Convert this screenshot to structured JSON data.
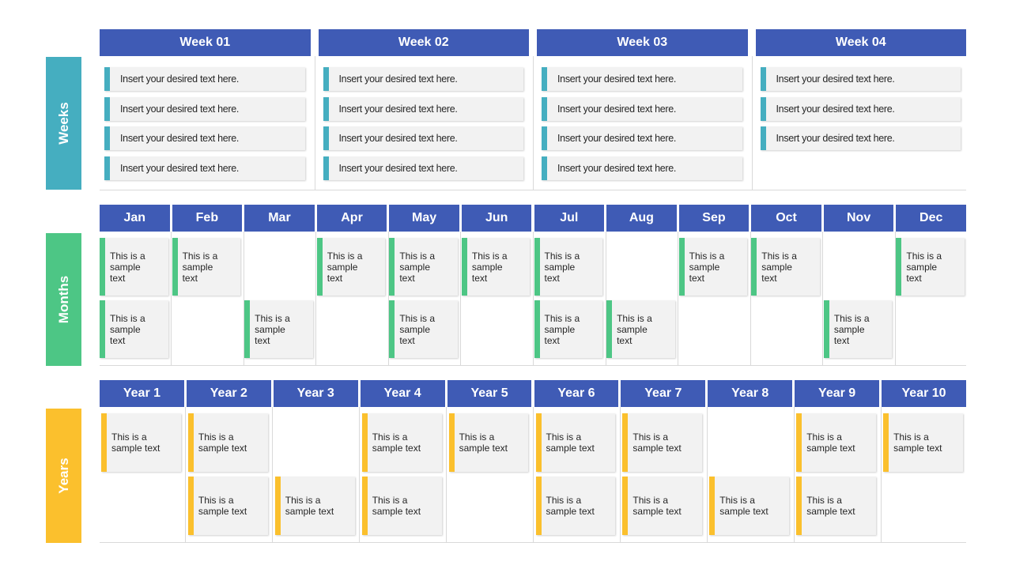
{
  "weeks": {
    "label": "Weeks",
    "columns": [
      {
        "header": "Week 01",
        "items": [
          "Insert your desired text here.",
          "Insert your desired text here.",
          "Insert your desired text here.",
          "Insert your desired text here."
        ]
      },
      {
        "header": "Week 02",
        "items": [
          "Insert your desired text here.",
          "Insert your desired text here.",
          "Insert your desired text here.",
          "Insert your desired text here."
        ]
      },
      {
        "header": "Week 03",
        "items": [
          "Insert your desired text here.",
          "Insert your desired text here.",
          "Insert your desired text here.",
          "Insert your desired text here."
        ]
      },
      {
        "header": "Week 04",
        "items": [
          "Insert your desired text here.",
          "Insert your desired text here.",
          "Insert your desired text here."
        ]
      }
    ]
  },
  "months": {
    "label": "Months",
    "columns": [
      {
        "header": "Jan",
        "items": [
          "This is a sample text",
          "This is a sample text"
        ]
      },
      {
        "header": "Feb",
        "items": [
          "This is a sample text",
          null
        ]
      },
      {
        "header": "Mar",
        "items": [
          null,
          "This is a sample text"
        ]
      },
      {
        "header": "Apr",
        "items": [
          "This is a sample text",
          null
        ]
      },
      {
        "header": "May",
        "items": [
          "This is a sample text",
          "This is a sample text"
        ]
      },
      {
        "header": "Jun",
        "items": [
          "This is a sample text",
          null
        ]
      },
      {
        "header": "Jul",
        "items": [
          "This is a sample text",
          "This is a sample text"
        ]
      },
      {
        "header": "Aug",
        "items": [
          null,
          "This is a sample text"
        ]
      },
      {
        "header": "Sep",
        "items": [
          "This is a sample text",
          null
        ]
      },
      {
        "header": "Oct",
        "items": [
          "This is a sample text",
          null
        ]
      },
      {
        "header": "Nov",
        "items": [
          null,
          "This is a sample text"
        ]
      },
      {
        "header": "Dec",
        "items": [
          "This is a sample text",
          null
        ]
      }
    ]
  },
  "years": {
    "label": "Years",
    "columns": [
      {
        "header": "Year 1",
        "items": [
          "This is a sample text",
          null
        ]
      },
      {
        "header": "Year 2",
        "items": [
          "This is a sample text",
          "This is a sample text"
        ]
      },
      {
        "header": "Year 3",
        "items": [
          null,
          "This is a sample text"
        ]
      },
      {
        "header": "Year 4",
        "items": [
          "This is a sample text",
          "This is a sample text"
        ]
      },
      {
        "header": "Year 5",
        "items": [
          "This is a sample text",
          null
        ]
      },
      {
        "header": "Year 6",
        "items": [
          "This is a sample text",
          "This is a sample text"
        ]
      },
      {
        "header": "Year 7",
        "items": [
          "This is a sample text",
          "This is a sample text"
        ]
      },
      {
        "header": "Year 8",
        "items": [
          null,
          "This is a sample text"
        ]
      },
      {
        "header": "Year 9",
        "items": [
          "This is a sample text",
          "This is a sample text"
        ]
      },
      {
        "header": "Year 10",
        "items": [
          "This is a sample text",
          null
        ]
      }
    ]
  }
}
